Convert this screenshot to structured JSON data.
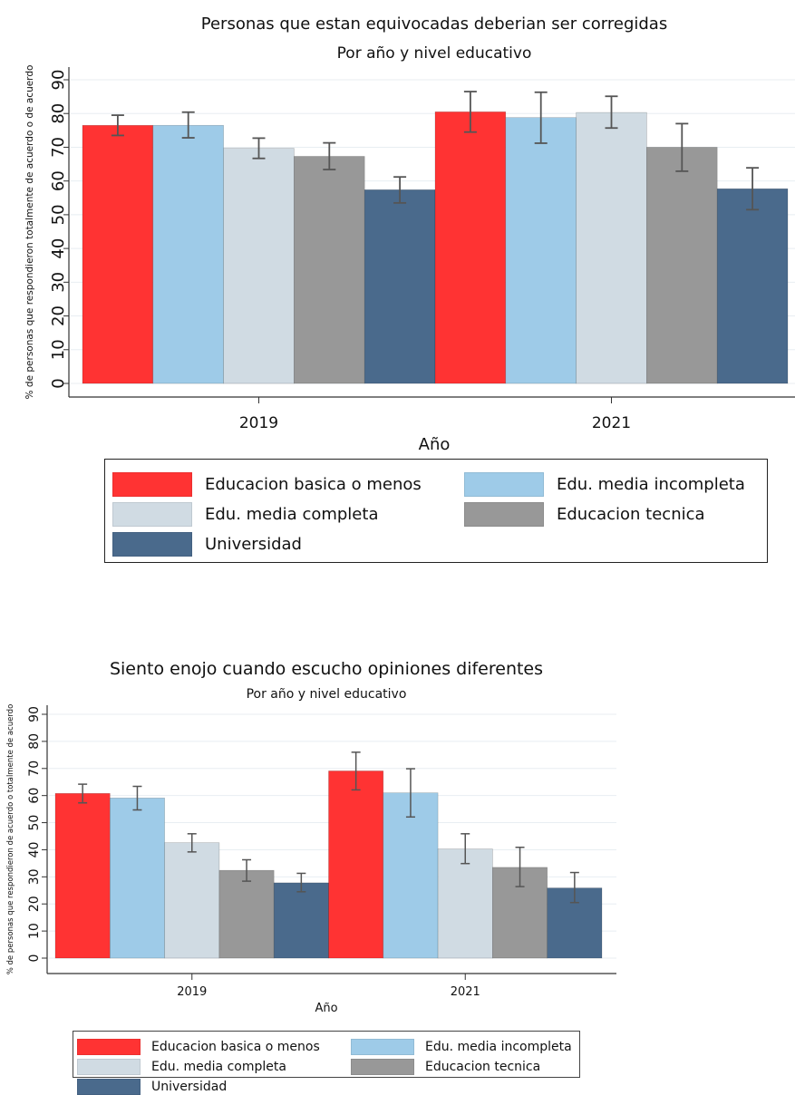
{
  "chart_data": [
    {
      "type": "bar",
      "title": "Personas que estan equivocadas deberian ser corregidas",
      "subtitle": "Por año y nivel educativo",
      "xlabel": "Año",
      "ylabel": "% de personas que respondieron totalmente de acuerdo o de acuerdo",
      "categories": [
        "2019",
        "2021"
      ],
      "ylim": [
        0,
        90
      ],
      "yticks": [
        "0",
        "10",
        "20",
        "30",
        "40",
        "50",
        "60",
        "70",
        "80",
        "90"
      ],
      "grid": true,
      "legend_position": "bottom",
      "error_bars": true,
      "series": [
        {
          "name": "Educacion basica o menos",
          "color": "#ff3333",
          "values": [
            76.5,
            80.5
          ],
          "ci_low": [
            73.5,
            74.5
          ],
          "ci_high": [
            79.5,
            86.5
          ]
        },
        {
          "name": "Edu. media incompleta",
          "color": "#9ecbe8",
          "values": [
            76.5,
            78.8
          ],
          "ci_low": [
            72.8,
            71.2
          ],
          "ci_high": [
            80.4,
            86.3
          ]
        },
        {
          "name": "Edu. media completa",
          "color": "#d0dbe3",
          "values": [
            69.7,
            80.3
          ],
          "ci_low": [
            66.7,
            75.7
          ],
          "ci_high": [
            72.7,
            85.1
          ]
        },
        {
          "name": "Educacion tecnica",
          "color": "#989898",
          "values": [
            67.3,
            70.0
          ],
          "ci_low": [
            63.4,
            62.9
          ],
          "ci_high": [
            71.3,
            77.0
          ]
        },
        {
          "name": "Universidad",
          "color": "#4a6a8c",
          "values": [
            57.4,
            57.7
          ],
          "ci_low": [
            53.5,
            51.5
          ],
          "ci_high": [
            61.2,
            63.9
          ]
        }
      ]
    },
    {
      "type": "bar",
      "title": "Siento enojo cuando escucho opiniones diferentes",
      "subtitle": "Por año y nivel educativo",
      "xlabel": "Año",
      "ylabel": "% de personas que respondieron de acuerdo o totalmente de acuerdo",
      "categories": [
        "2019",
        "2021"
      ],
      "ylim": [
        0,
        90
      ],
      "yticks": [
        "0",
        "10",
        "20",
        "30",
        "40",
        "50",
        "60",
        "70",
        "80",
        "90"
      ],
      "grid": true,
      "legend_position": "bottom",
      "error_bars": true,
      "series": [
        {
          "name": "Educacion basica o menos",
          "color": "#ff3333",
          "values": [
            60.8,
            69.1
          ],
          "ci_low": [
            57.3,
            62.1
          ],
          "ci_high": [
            64.2,
            76.0
          ]
        },
        {
          "name": "Edu. media incompleta",
          "color": "#9ecbe8",
          "values": [
            59.1,
            61.0
          ],
          "ci_low": [
            54.7,
            52.1
          ],
          "ci_high": [
            63.4,
            69.9
          ]
        },
        {
          "name": "Edu. media completa",
          "color": "#d0dbe3",
          "values": [
            42.6,
            40.3
          ],
          "ci_low": [
            39.2,
            34.9
          ],
          "ci_high": [
            45.9,
            45.9
          ]
        },
        {
          "name": "Educacion tecnica",
          "color": "#989898",
          "values": [
            32.4,
            33.5
          ],
          "ci_low": [
            28.4,
            26.4
          ],
          "ci_high": [
            36.3,
            40.9
          ]
        },
        {
          "name": "Universidad",
          "color": "#4a6a8c",
          "values": [
            27.8,
            25.9
          ],
          "ci_low": [
            24.5,
            20.5
          ],
          "ci_high": [
            31.3,
            31.6
          ]
        }
      ]
    }
  ]
}
